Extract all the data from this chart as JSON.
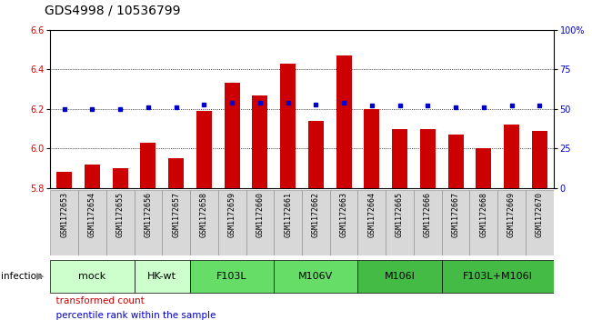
{
  "title": "GDS4998 / 10536799",
  "samples": [
    "GSM1172653",
    "GSM1172654",
    "GSM1172655",
    "GSM1172656",
    "GSM1172657",
    "GSM1172658",
    "GSM1172659",
    "GSM1172660",
    "GSM1172661",
    "GSM1172662",
    "GSM1172663",
    "GSM1172664",
    "GSM1172665",
    "GSM1172666",
    "GSM1172667",
    "GSM1172668",
    "GSM1172669",
    "GSM1172670"
  ],
  "bar_values": [
    5.88,
    5.92,
    5.9,
    6.03,
    5.95,
    6.19,
    6.33,
    6.27,
    6.43,
    6.14,
    6.47,
    6.2,
    6.1,
    6.1,
    6.07,
    6.0,
    6.12,
    6.09
  ],
  "dot_values": [
    50,
    50,
    50,
    51,
    51,
    53,
    54,
    54,
    54,
    53,
    54,
    52,
    52,
    52,
    51,
    51,
    52,
    52
  ],
  "ylim": [
    5.8,
    6.6
  ],
  "y2lim": [
    0,
    100
  ],
  "yticks": [
    5.8,
    6.0,
    6.2,
    6.4,
    6.6
  ],
  "y2ticks": [
    0,
    25,
    50,
    75,
    100
  ],
  "y2labels": [
    "0",
    "25",
    "50",
    "75",
    "100%"
  ],
  "bar_color": "#cc0000",
  "dot_color": "#0000cc",
  "group_configs": [
    {
      "label": "mock",
      "indices": [
        0,
        1,
        2
      ],
      "color": "#ccffcc"
    },
    {
      "label": "HK-wt",
      "indices": [
        3,
        4
      ],
      "color": "#ccffcc"
    },
    {
      "label": "F103L",
      "indices": [
        5,
        6,
        7
      ],
      "color": "#66dd66"
    },
    {
      "label": "M106V",
      "indices": [
        8,
        9,
        10
      ],
      "color": "#66dd66"
    },
    {
      "label": "M106I",
      "indices": [
        11,
        12,
        13
      ],
      "color": "#44bb44"
    },
    {
      "label": "F103L+M106I",
      "indices": [
        14,
        15,
        16,
        17
      ],
      "color": "#44bb44"
    }
  ],
  "xlabel_infection": "infection",
  "legend_bar": "transformed count",
  "legend_dot": "percentile rank within the sample",
  "bar_color_legend": "#cc0000",
  "dot_color_legend": "#0000cc",
  "title_fontsize": 10,
  "tick_fontsize": 7,
  "sample_fontsize": 6,
  "group_fontsize": 8,
  "legend_fontsize": 7.5,
  "sample_box_color": "#d8d8d8",
  "sample_box_border": "#888888"
}
